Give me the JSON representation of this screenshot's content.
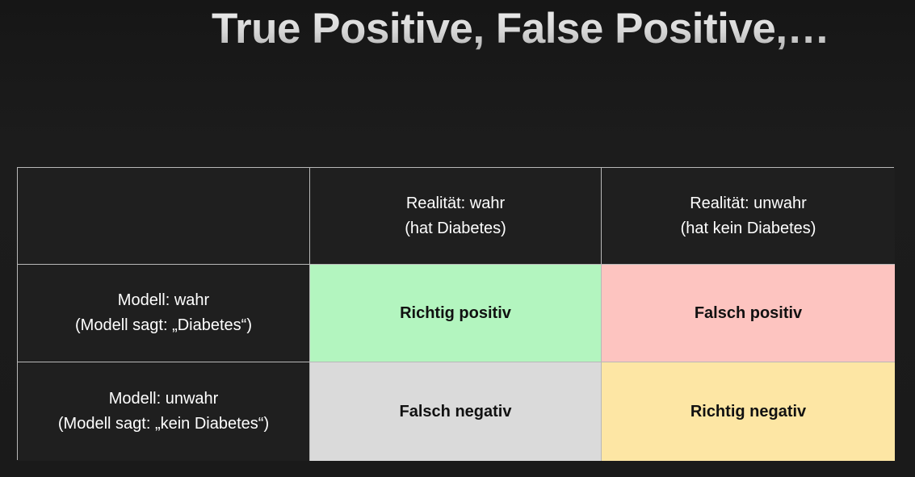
{
  "title": "True Positive, False Positive,…",
  "matrix": {
    "corner": "",
    "columns": [
      {
        "line1": "Realität: wahr",
        "line2": "(hat Diabetes)"
      },
      {
        "line1": "Realität: unwahr",
        "line2": "(hat kein Diabetes)"
      }
    ],
    "rows": [
      {
        "line1": "Modell: wahr",
        "line2": "(Modell sagt: „Diabetes“)"
      },
      {
        "line1": "Modell: unwahr",
        "line2": "(Modell sagt: „kein Diabetes“)"
      }
    ],
    "cells": {
      "true_positive": "Richtig positiv",
      "false_positive": "Falsch positiv",
      "false_negative": "Falsch negativ",
      "true_negative": "Richtig negativ"
    }
  },
  "colors": {
    "true_positive": "#b3f5bf",
    "false_positive": "#fdc4c0",
    "false_negative": "#dadada",
    "true_negative": "#fde6a4"
  }
}
